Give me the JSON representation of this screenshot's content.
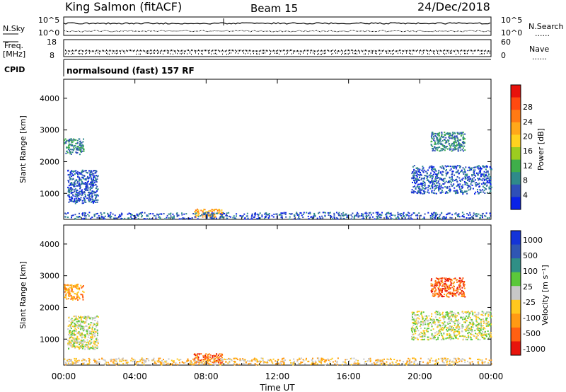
{
  "header": {
    "station": "King Salmon (fitACF)",
    "beam": "Beam 15",
    "date": "24/Dec/2018"
  },
  "side_labels": {
    "nsky": "N.Sky",
    "freq_line1": "Freq.",
    "freq_line2": "[MHz]",
    "cpid": "CPID",
    "nsearch": "N.Search",
    "nave": "Nave",
    "dots": "......"
  },
  "cpid_text": "normalsound (fast) 157 RF",
  "noise_axis": {
    "left_ticks": [
      "10^5",
      "10^0"
    ],
    "right_ticks": [
      "10^5",
      "10^0"
    ]
  },
  "freq_axis": {
    "left_ticks": [
      "18",
      "8"
    ],
    "right_ticks": [
      "60",
      "0"
    ]
  },
  "chart_data": [
    {
      "type": "heatmap",
      "name": "power",
      "ylabel": "Slant Range [km]",
      "xlabel": "",
      "x_ticks": [
        "00:00",
        "04:00",
        "08:00",
        "12:00",
        "16:00",
        "20:00",
        "00:00"
      ],
      "xlim_hours": [
        0,
        24
      ],
      "y_ticks": [
        1000,
        2000,
        3000,
        4000
      ],
      "ylim_km": [
        180,
        4600
      ],
      "colorbar": {
        "label": "Power [dB]",
        "ticks": [
          "4",
          "8",
          "12",
          "16",
          "20",
          "24",
          "28"
        ],
        "colors": [
          "#0a22e6",
          "#2f4fb8",
          "#2f8a8a",
          "#3fae4a",
          "#9ccc20",
          "#ffd21f",
          "#ffa81a",
          "#ff7a14",
          "#ff4a10",
          "#e8120c"
        ]
      },
      "clusters": [
        {
          "t0": 0.0,
          "t1": 1.1,
          "r0": 2250,
          "r1": 2750,
          "level": 2
        },
        {
          "t0": 0.2,
          "t1": 1.9,
          "r0": 700,
          "r1": 1750,
          "level": 1
        },
        {
          "t0": 7.3,
          "t1": 8.9,
          "r0": 270,
          "r1": 520,
          "level": 6
        },
        {
          "t0": 0.0,
          "t1": 24.0,
          "r0": 210,
          "r1": 420,
          "level": 1
        },
        {
          "t0": 20.6,
          "t1": 22.5,
          "r0": 2350,
          "r1": 2950,
          "level": 2
        },
        {
          "t0": 19.5,
          "t1": 24.0,
          "r0": 1000,
          "r1": 1900,
          "level": 1
        }
      ]
    },
    {
      "type": "heatmap",
      "name": "velocity",
      "ylabel": "Slant Range [km]",
      "xlabel": "Time UT",
      "x_ticks": [
        "00:00",
        "04:00",
        "08:00",
        "12:00",
        "16:00",
        "20:00",
        "00:00"
      ],
      "xlim_hours": [
        0,
        24
      ],
      "y_ticks": [
        1000,
        2000,
        3000,
        4000
      ],
      "ylim_km": [
        180,
        4600
      ],
      "colorbar": {
        "label": "Velocity [m s⁻¹]",
        "ticks": [
          "1000",
          "500",
          "100",
          "25",
          "-25",
          "-100",
          "-500",
          "-1000"
        ],
        "colors": [
          "#1434d8",
          "#2f56b4",
          "#2f8f86",
          "#5bc83a",
          "#c8c8c8",
          "#ffc81e",
          "#ff9a14",
          "#ff6012",
          "#e8140c"
        ]
      },
      "clusters": [
        {
          "t0": 0.0,
          "t1": 1.1,
          "r0": 2250,
          "r1": 2750,
          "level": 6
        },
        {
          "t0": 0.2,
          "t1": 1.9,
          "r0": 700,
          "r1": 1750,
          "level": 4
        },
        {
          "t0": 7.3,
          "t1": 8.9,
          "r0": 270,
          "r1": 560,
          "level": 7
        },
        {
          "t0": 0.0,
          "t1": 24.0,
          "r0": 210,
          "r1": 420,
          "level": 5
        },
        {
          "t0": 20.6,
          "t1": 22.5,
          "r0": 2350,
          "r1": 2950,
          "level": 7
        },
        {
          "t0": 19.5,
          "t1": 24.0,
          "r0": 1000,
          "r1": 1900,
          "level": 4
        }
      ]
    }
  ]
}
